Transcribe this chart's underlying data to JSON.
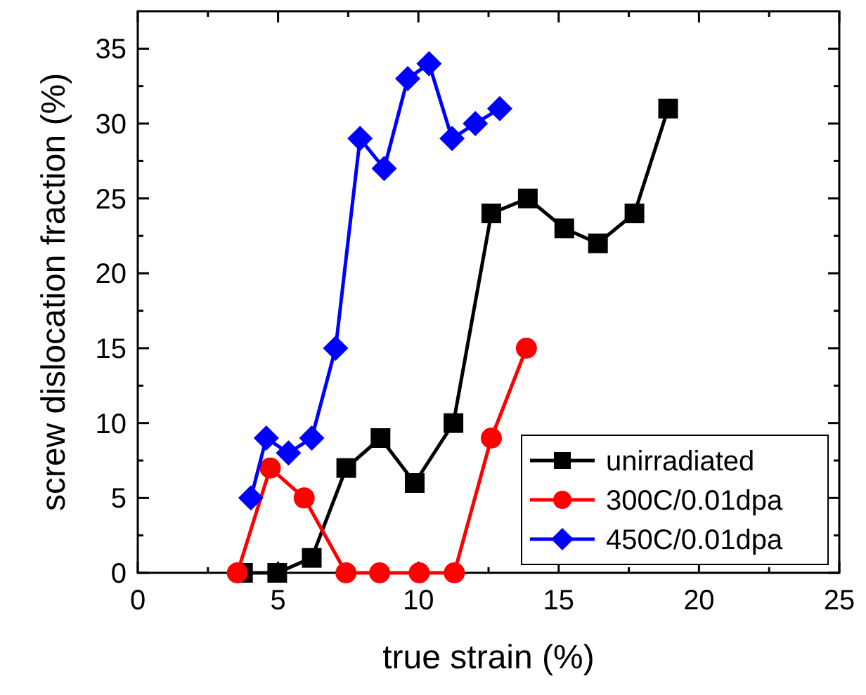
{
  "chart_data": {
    "type": "line",
    "xlabel": "true strain (%)",
    "ylabel": "screw dislocation fraction (%)",
    "xlim": [
      0,
      25
    ],
    "ylim": [
      0,
      37.5
    ],
    "xticks": [
      0,
      {
        "value": 2.5,
        "label": null
      },
      5,
      {
        "value": 7.5,
        "label": null
      },
      10,
      {
        "value": 12.5,
        "label": null
      },
      15,
      {
        "value": 17.5,
        "label": null
      },
      20,
      {
        "value": 22.5,
        "label": null
      },
      25
    ],
    "yticks": [
      0,
      {
        "value": 2.5,
        "label": null
      },
      5,
      {
        "value": 7.5,
        "label": null
      },
      10,
      {
        "value": 12.5,
        "label": null
      },
      15,
      {
        "value": 17.5,
        "label": null
      },
      20,
      {
        "value": 22.5,
        "label": null
      },
      25,
      {
        "value": 27.5,
        "label": null
      },
      30,
      {
        "value": 32.5,
        "label": null
      },
      35
    ],
    "grid": false,
    "legend": "bottom right",
    "line_style": "solid",
    "series": [
      {
        "name": "unirradiated",
        "color": "#000000",
        "marker": "square",
        "x": [
          3.75,
          4.97,
          6.2,
          7.43,
          8.65,
          9.87,
          11.25,
          12.6,
          13.9,
          15.2,
          16.4,
          17.7,
          18.9
        ],
        "values": [
          0,
          0,
          1,
          7,
          9,
          6,
          10,
          24,
          25,
          23,
          22,
          24,
          31
        ]
      },
      {
        "name": "300C/0.01dpa",
        "color": "#ff0000",
        "marker": "circle",
        "x": [
          3.55,
          4.72,
          5.93,
          7.42,
          8.62,
          10.03,
          11.28,
          12.6,
          13.85
        ],
        "values": [
          0,
          7,
          5,
          0,
          0,
          0,
          0,
          9,
          15
        ]
      },
      {
        "name": "450C/0.01dpa",
        "color": "#0000ff",
        "marker": "diamond",
        "x": [
          4.03,
          4.58,
          5.37,
          6.2,
          7.05,
          7.92,
          8.78,
          9.62,
          10.38,
          11.2,
          12.03,
          12.9
        ],
        "values": [
          5,
          9,
          8,
          9,
          15,
          29,
          27,
          33,
          34,
          29,
          30,
          31
        ]
      }
    ]
  }
}
